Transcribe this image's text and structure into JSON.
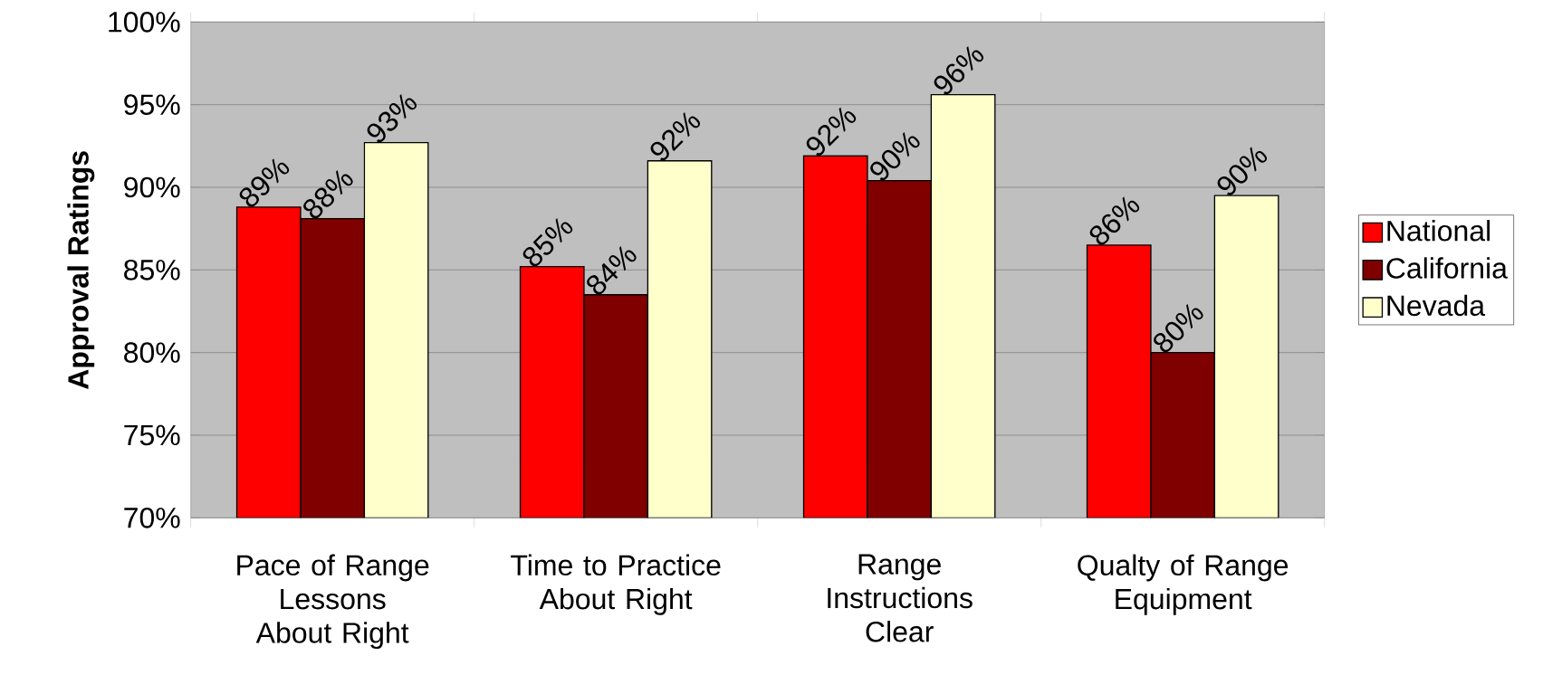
{
  "chart_data": {
    "type": "bar",
    "ylabel": "Approval Ratings",
    "categories": [
      "Pace of Range Lessons About Right",
      "Time to Practice About Right",
      "Range Instructions Clear",
      "Qualty of Range Equipment"
    ],
    "series": [
      {
        "name": "National",
        "color": "#ff0000",
        "values": [
          88.8,
          85.2,
          91.9,
          86.5
        ],
        "value_labels": [
          "89%",
          "85%",
          "92%",
          "86%"
        ]
      },
      {
        "name": "California",
        "color": "#800000",
        "values": [
          88.1,
          83.5,
          90.4,
          80.0
        ],
        "value_labels": [
          "88%",
          "84%",
          "90%",
          "80%"
        ]
      },
      {
        "name": "Nevada",
        "color": "#ffffcc",
        "values": [
          92.7,
          91.6,
          95.6,
          89.5
        ],
        "value_labels": [
          "93%",
          "92%",
          "96%",
          "90%"
        ]
      }
    ],
    "ylim": [
      70,
      100
    ],
    "yticks": [
      {
        "value": 70,
        "label": "70%"
      },
      {
        "value": 75,
        "label": "75%"
      },
      {
        "value": 80,
        "label": "80%"
      },
      {
        "value": 85,
        "label": "85%"
      },
      {
        "value": 90,
        "label": "90%"
      },
      {
        "value": 95,
        "label": "95%"
      },
      {
        "value": 100,
        "label": "100%"
      }
    ],
    "grid": "y",
    "legend": "right"
  }
}
